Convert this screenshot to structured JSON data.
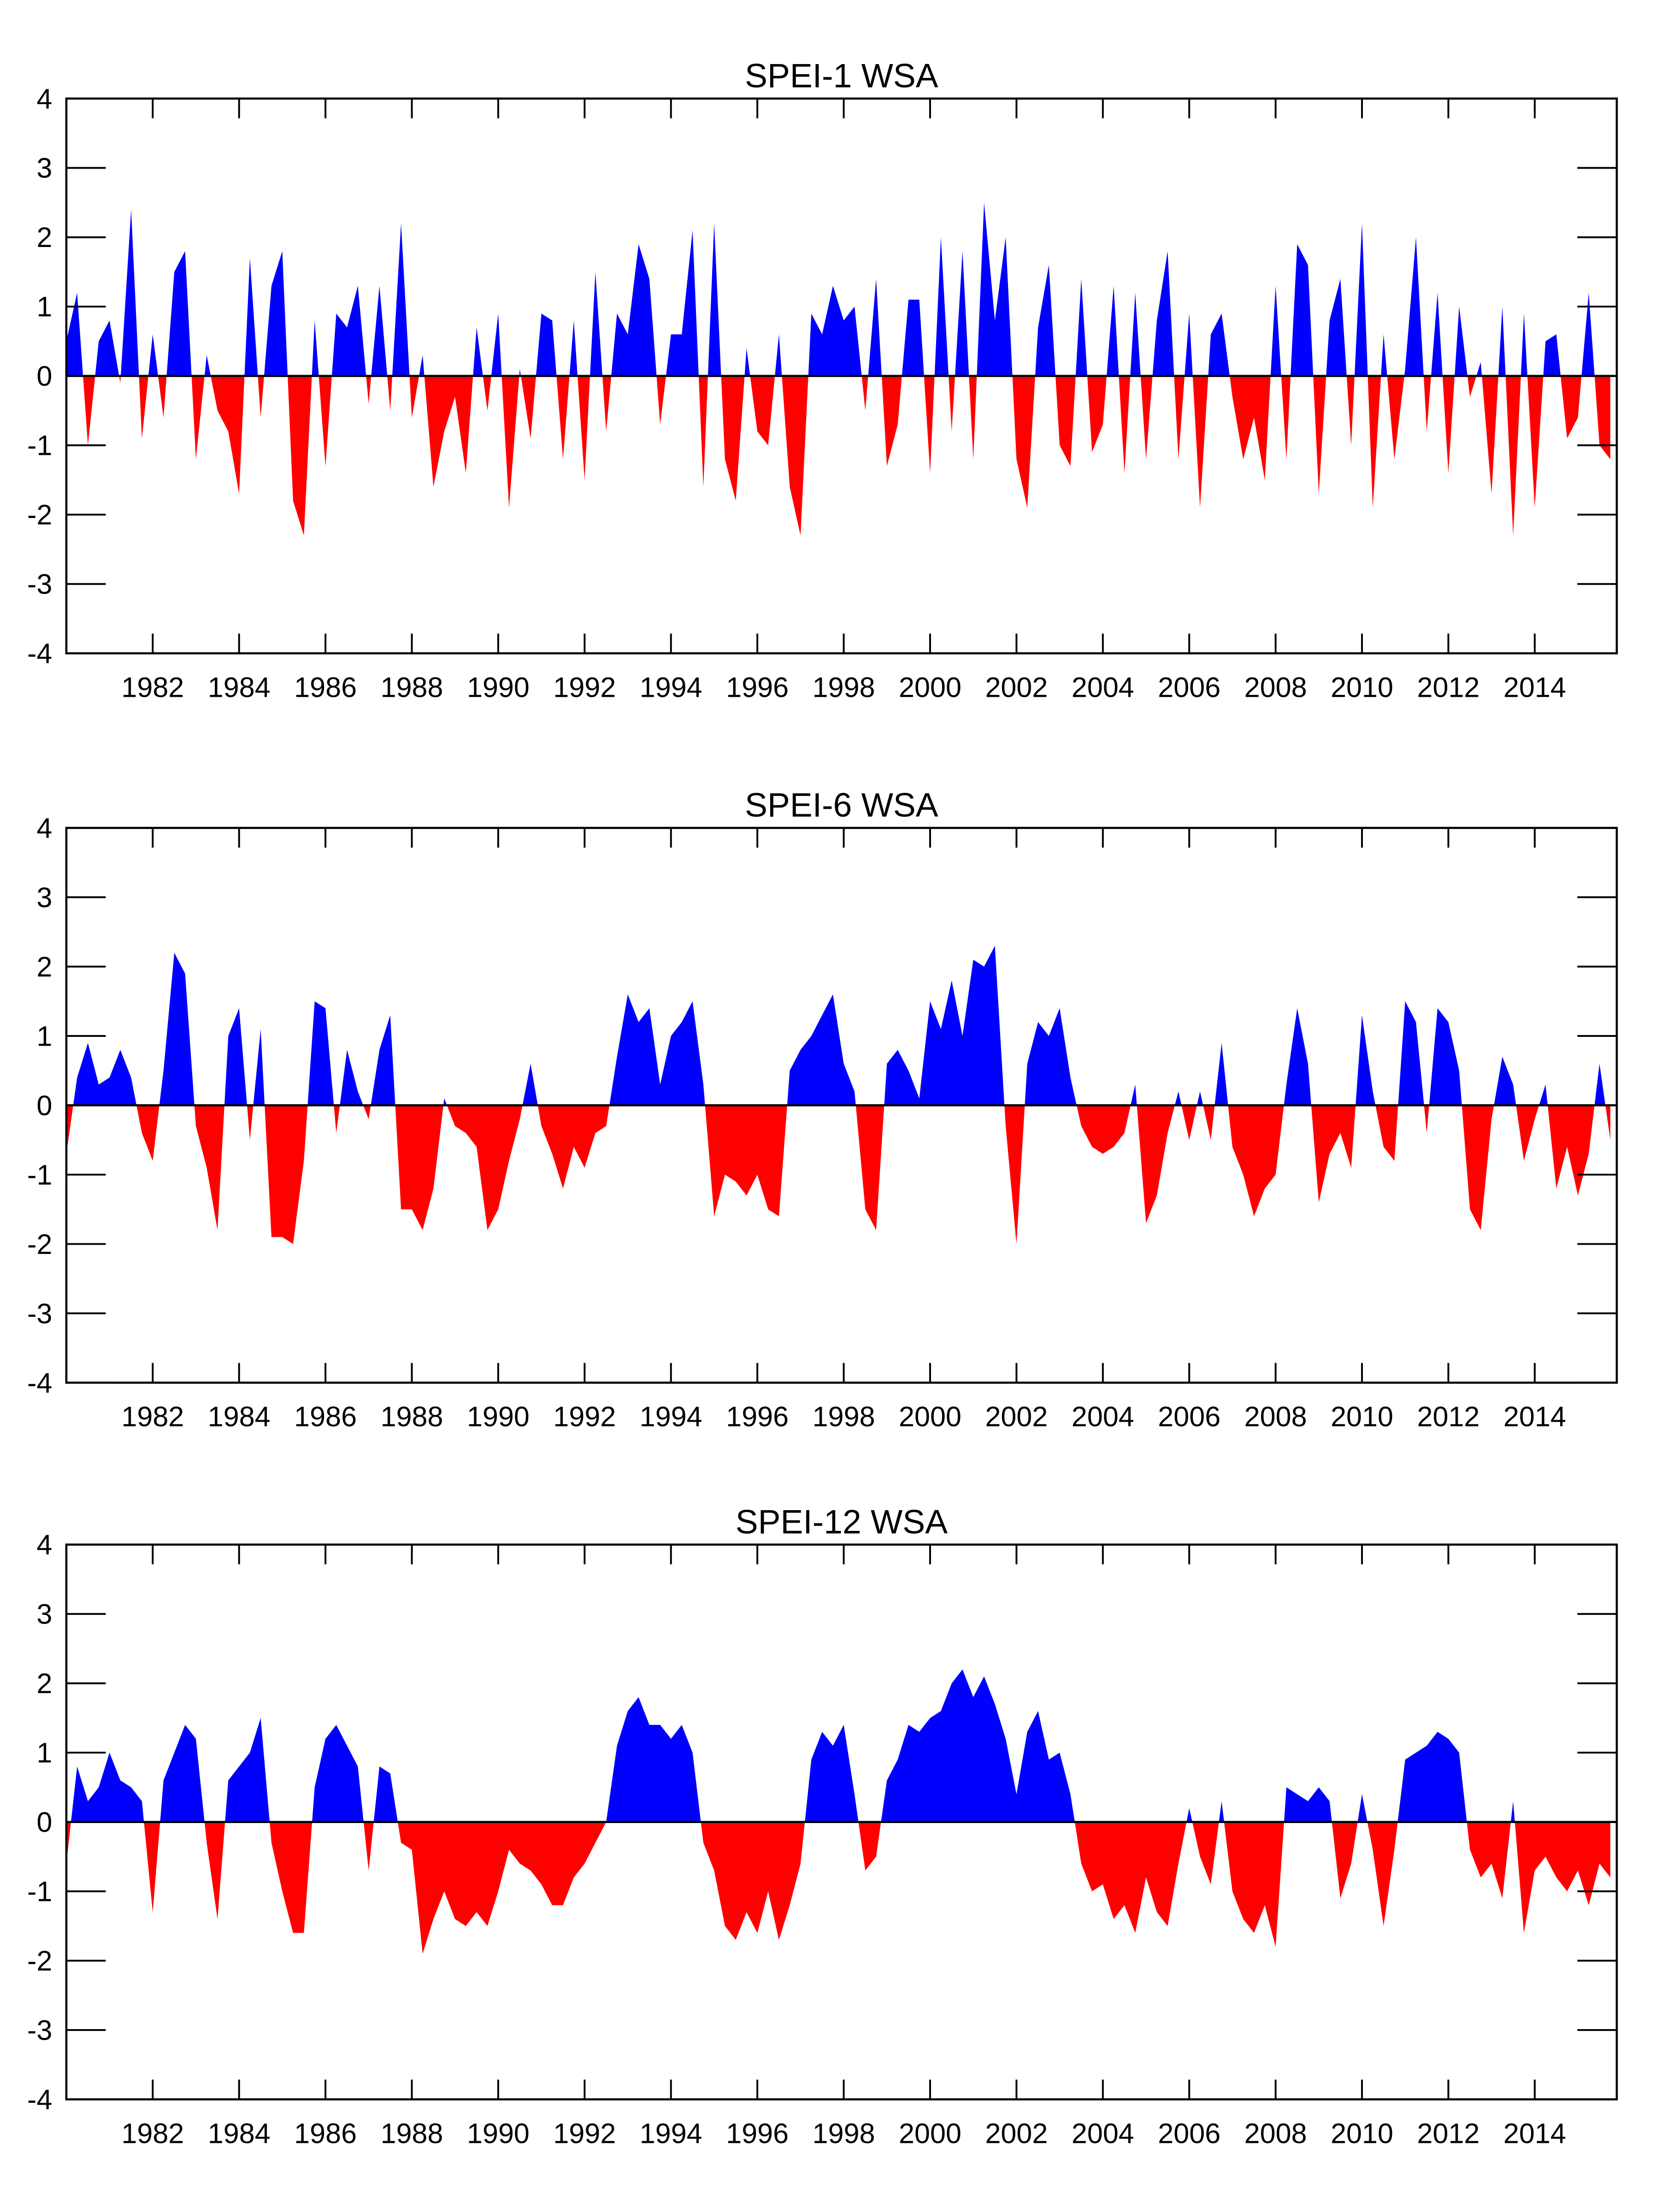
{
  "chart_data": [
    {
      "type": "area",
      "title": "SPEI-1 WSA",
      "x": [
        1980,
        1980.25,
        1980.5,
        1980.75,
        1981,
        1981.25,
        1981.5,
        1981.75,
        1982,
        1982.25,
        1982.5,
        1982.75,
        1983,
        1983.25,
        1983.5,
        1983.75,
        1984,
        1984.25,
        1984.5,
        1984.75,
        1985,
        1985.25,
        1985.5,
        1985.75,
        1986,
        1986.25,
        1986.5,
        1986.75,
        1987,
        1987.25,
        1987.5,
        1987.75,
        1988,
        1988.25,
        1988.5,
        1988.75,
        1989,
        1989.25,
        1989.5,
        1989.75,
        1990,
        1990.25,
        1990.5,
        1990.75,
        1991,
        1991.25,
        1991.5,
        1991.75,
        1992,
        1992.25,
        1992.5,
        1992.75,
        1993,
        1993.25,
        1993.5,
        1993.75,
        1994,
        1994.25,
        1994.5,
        1994.75,
        1995,
        1995.25,
        1995.5,
        1995.75,
        1996,
        1996.25,
        1996.5,
        1996.75,
        1997,
        1997.25,
        1997.5,
        1997.75,
        1998,
        1998.25,
        1998.5,
        1998.75,
        1999,
        1999.25,
        1999.5,
        1999.75,
        2000,
        2000.25,
        2000.5,
        2000.75,
        2001,
        2001.25,
        2001.5,
        2001.75,
        2002,
        2002.25,
        2002.5,
        2002.75,
        2003,
        2003.25,
        2003.5,
        2003.75,
        2004,
        2004.25,
        2004.5,
        2004.75,
        2005,
        2005.25,
        2005.5,
        2005.75,
        2006,
        2006.25,
        2006.5,
        2006.75,
        2007,
        2007.25,
        2007.5,
        2007.75,
        2008,
        2008.25,
        2008.5,
        2008.75,
        2009,
        2009.25,
        2009.5,
        2009.75,
        2010,
        2010.25,
        2010.5,
        2010.75,
        2011,
        2011.25,
        2011.5,
        2011.75,
        2012,
        2012.25,
        2012.5,
        2012.75,
        2013,
        2013.25,
        2013.5,
        2013.75,
        2014,
        2014.25,
        2014.5,
        2014.75,
        2015,
        2015.25,
        2015.5,
        2015.75
      ],
      "values": [
        0.5,
        1.2,
        -1.0,
        0.5,
        0.8,
        -0.1,
        2.4,
        -0.9,
        0.6,
        -0.6,
        1.5,
        1.8,
        -1.2,
        0.3,
        -0.5,
        -0.8,
        -1.7,
        1.7,
        -0.6,
        1.3,
        1.8,
        -1.8,
        -2.3,
        0.8,
        -1.3,
        0.9,
        0.7,
        1.3,
        -0.4,
        1.3,
        -0.5,
        2.2,
        -0.6,
        0.3,
        -1.6,
        -0.8,
        -0.3,
        -1.4,
        0.7,
        -0.5,
        0.9,
        -1.9,
        0.1,
        -0.9,
        0.9,
        0.8,
        -1.2,
        0.8,
        -1.5,
        1.5,
        -0.8,
        0.9,
        0.6,
        1.9,
        1.4,
        -0.7,
        0.6,
        0.6,
        2.1,
        -1.6,
        2.2,
        -1.2,
        -1.8,
        0.4,
        -0.8,
        -1.0,
        0.6,
        -1.6,
        -2.3,
        0.9,
        0.6,
        1.3,
        0.8,
        1.0,
        -0.5,
        1.4,
        -1.3,
        -0.7,
        1.1,
        1.1,
        -1.4,
        2.0,
        -0.8,
        1.8,
        -1.2,
        2.5,
        0.8,
        2.0,
        -1.2,
        -1.9,
        0.7,
        1.6,
        -1.0,
        -1.3,
        1.4,
        -1.1,
        -0.7,
        1.3,
        -1.4,
        1.2,
        -1.2,
        0.8,
        1.8,
        -1.2,
        0.9,
        -1.9,
        0.6,
        0.9,
        -0.3,
        -1.2,
        -0.6,
        -1.5,
        1.3,
        -1.2,
        1.9,
        1.6,
        -1.7,
        0.8,
        1.4,
        -1.0,
        2.2,
        -1.9,
        0.6,
        -1.2,
        0.1,
        2.0,
        -0.8,
        1.2,
        -1.4,
        1.0,
        -0.3,
        0.2,
        -1.7,
        1.0,
        -2.3,
        0.9,
        -1.9,
        0.5,
        0.6,
        -0.9,
        -0.6,
        1.2,
        -1.0,
        -1.2
      ],
      "xlim": [
        1980,
        2015.9
      ],
      "ylim": [
        -4,
        4
      ],
      "xticks": [
        1982,
        1984,
        1986,
        1988,
        1990,
        1992,
        1994,
        1996,
        1998,
        2000,
        2002,
        2004,
        2006,
        2008,
        2010,
        2012,
        2014
      ],
      "yticks": [
        -4,
        -3,
        -2,
        -1,
        0,
        1,
        2,
        3,
        4
      ],
      "color_positive": "#0000ff",
      "color_negative": "#ff0000"
    },
    {
      "type": "area",
      "title": "SPEI-6 WSA",
      "x": [
        1980,
        1980.25,
        1980.5,
        1980.75,
        1981,
        1981.25,
        1981.5,
        1981.75,
        1982,
        1982.25,
        1982.5,
        1982.75,
        1983,
        1983.25,
        1983.5,
        1983.75,
        1984,
        1984.25,
        1984.5,
        1984.75,
        1985,
        1985.25,
        1985.5,
        1985.75,
        1986,
        1986.25,
        1986.5,
        1986.75,
        1987,
        1987.25,
        1987.5,
        1987.75,
        1988,
        1988.25,
        1988.5,
        1988.75,
        1989,
        1989.25,
        1989.5,
        1989.75,
        1990,
        1990.25,
        1990.5,
        1990.75,
        1991,
        1991.25,
        1991.5,
        1991.75,
        1992,
        1992.25,
        1992.5,
        1992.75,
        1993,
        1993.25,
        1993.5,
        1993.75,
        1994,
        1994.25,
        1994.5,
        1994.75,
        1995,
        1995.25,
        1995.5,
        1995.75,
        1996,
        1996.25,
        1996.5,
        1996.75,
        1997,
        1997.25,
        1997.5,
        1997.75,
        1998,
        1998.25,
        1998.5,
        1998.75,
        1999,
        1999.25,
        1999.5,
        1999.75,
        2000,
        2000.25,
        2000.5,
        2000.75,
        2001,
        2001.25,
        2001.5,
        2001.75,
        2002,
        2002.25,
        2002.5,
        2002.75,
        2003,
        2003.25,
        2003.5,
        2003.75,
        2004,
        2004.25,
        2004.5,
        2004.75,
        2005,
        2005.25,
        2005.5,
        2005.75,
        2006,
        2006.25,
        2006.5,
        2006.75,
        2007,
        2007.25,
        2007.5,
        2007.75,
        2008,
        2008.25,
        2008.5,
        2008.75,
        2009,
        2009.25,
        2009.5,
        2009.75,
        2010,
        2010.25,
        2010.5,
        2010.75,
        2011,
        2011.25,
        2011.5,
        2011.75,
        2012,
        2012.25,
        2012.5,
        2012.75,
        2013,
        2013.25,
        2013.5,
        2013.75,
        2014,
        2014.25,
        2014.5,
        2014.75,
        2015,
        2015.25,
        2015.5,
        2015.75
      ],
      "values": [
        -0.7,
        0.4,
        0.9,
        0.3,
        0.4,
        0.8,
        0.4,
        -0.4,
        -0.8,
        0.5,
        2.2,
        1.9,
        -0.3,
        -0.9,
        -1.8,
        1.0,
        1.4,
        -0.5,
        1.1,
        -1.9,
        -1.9,
        -2.0,
        -0.8,
        1.5,
        1.4,
        -0.4,
        0.8,
        0.2,
        -0.2,
        0.8,
        1.3,
        -1.5,
        -1.5,
        -1.8,
        -1.2,
        0.1,
        -0.3,
        -0.4,
        -0.6,
        -1.8,
        -1.5,
        -0.8,
        -0.2,
        0.6,
        -0.3,
        -0.7,
        -1.2,
        -0.6,
        -0.9,
        -0.4,
        -0.3,
        0.7,
        1.6,
        1.2,
        1.4,
        0.3,
        1.0,
        1.2,
        1.5,
        0.3,
        -1.6,
        -1.0,
        -1.1,
        -1.3,
        -1.0,
        -1.5,
        -1.6,
        0.5,
        0.8,
        1.0,
        1.3,
        1.6,
        0.6,
        0.2,
        -1.5,
        -1.8,
        0.6,
        0.8,
        0.5,
        0.1,
        1.5,
        1.1,
        1.8,
        1.0,
        2.1,
        2.0,
        2.3,
        -0.3,
        -2.0,
        0.6,
        1.2,
        1.0,
        1.4,
        0.4,
        -0.3,
        -0.6,
        -0.7,
        -0.6,
        -0.4,
        0.3,
        -1.7,
        -1.3,
        -0.4,
        0.2,
        -0.5,
        0.2,
        -0.5,
        0.9,
        -0.6,
        -1.0,
        -1.6,
        -1.2,
        -1.0,
        0.3,
        1.4,
        0.6,
        -1.4,
        -0.7,
        -0.4,
        -0.9,
        1.3,
        0.2,
        -0.6,
        -0.8,
        1.5,
        1.2,
        -0.4,
        1.4,
        1.2,
        0.5,
        -1.5,
        -1.8,
        -0.2,
        0.7,
        0.3,
        -0.8,
        -0.2,
        0.3,
        -1.2,
        -0.6,
        -1.3,
        -0.7,
        0.6,
        -0.5
      ],
      "xlim": [
        1980,
        2015.9
      ],
      "ylim": [
        -4,
        4
      ],
      "xticks": [
        1982,
        1984,
        1986,
        1988,
        1990,
        1992,
        1994,
        1996,
        1998,
        2000,
        2002,
        2004,
        2006,
        2008,
        2010,
        2012,
        2014
      ],
      "yticks": [
        -4,
        -3,
        -2,
        -1,
        0,
        1,
        2,
        3,
        4
      ],
      "color_positive": "#0000ff",
      "color_negative": "#ff0000"
    },
    {
      "type": "area",
      "title": "SPEI-12 WSA",
      "x": [
        1980,
        1980.25,
        1980.5,
        1980.75,
        1981,
        1981.25,
        1981.5,
        1981.75,
        1982,
        1982.25,
        1982.5,
        1982.75,
        1983,
        1983.25,
        1983.5,
        1983.75,
        1984,
        1984.25,
        1984.5,
        1984.75,
        1985,
        1985.25,
        1985.5,
        1985.75,
        1986,
        1986.25,
        1986.5,
        1986.75,
        1987,
        1987.25,
        1987.5,
        1987.75,
        1988,
        1988.25,
        1988.5,
        1988.75,
        1989,
        1989.25,
        1989.5,
        1989.75,
        1990,
        1990.25,
        1990.5,
        1990.75,
        1991,
        1991.25,
        1991.5,
        1991.75,
        1992,
        1992.25,
        1992.5,
        1992.75,
        1993,
        1993.25,
        1993.5,
        1993.75,
        1994,
        1994.25,
        1994.5,
        1994.75,
        1995,
        1995.25,
        1995.5,
        1995.75,
        1996,
        1996.25,
        1996.5,
        1996.75,
        1997,
        1997.25,
        1997.5,
        1997.75,
        1998,
        1998.25,
        1998.5,
        1998.75,
        1999,
        1999.25,
        1999.5,
        1999.75,
        2000,
        2000.25,
        2000.5,
        2000.75,
        2001,
        2001.25,
        2001.5,
        2001.75,
        2002,
        2002.25,
        2002.5,
        2002.75,
        2003,
        2003.25,
        2003.5,
        2003.75,
        2004,
        2004.25,
        2004.5,
        2004.75,
        2005,
        2005.25,
        2005.5,
        2005.75,
        2006,
        2006.25,
        2006.5,
        2006.75,
        2007,
        2007.25,
        2007.5,
        2007.75,
        2008,
        2008.25,
        2008.5,
        2008.75,
        2009,
        2009.25,
        2009.5,
        2009.75,
        2010,
        2010.25,
        2010.5,
        2010.75,
        2011,
        2011.25,
        2011.5,
        2011.75,
        2012,
        2012.25,
        2012.5,
        2012.75,
        2013,
        2013.25,
        2013.5,
        2013.75,
        2014,
        2014.25,
        2014.5,
        2014.75,
        2015,
        2015.25,
        2015.5,
        2015.75
      ],
      "values": [
        -0.6,
        0.8,
        0.3,
        0.5,
        1.0,
        0.6,
        0.5,
        0.3,
        -1.3,
        0.6,
        1.0,
        1.4,
        1.2,
        -0.3,
        -1.4,
        0.6,
        0.8,
        1.0,
        1.5,
        -0.3,
        -1.0,
        -1.6,
        -1.6,
        0.5,
        1.2,
        1.4,
        1.1,
        0.8,
        -0.7,
        0.8,
        0.7,
        -0.3,
        -0.4,
        -1.9,
        -1.4,
        -1.0,
        -1.4,
        -1.5,
        -1.3,
        -1.5,
        -1.0,
        -0.4,
        -0.6,
        -0.7,
        -0.9,
        -1.2,
        -1.2,
        -0.8,
        -0.6,
        -0.3,
        0.0,
        1.1,
        1.6,
        1.8,
        1.4,
        1.4,
        1.2,
        1.4,
        1.0,
        -0.3,
        -0.7,
        -1.5,
        -1.7,
        -1.3,
        -1.6,
        -1.0,
        -1.7,
        -1.2,
        -0.6,
        0.9,
        1.3,
        1.1,
        1.4,
        0.4,
        -0.7,
        -0.5,
        0.6,
        0.9,
        1.4,
        1.3,
        1.5,
        1.6,
        2.0,
        2.2,
        1.8,
        2.1,
        1.7,
        1.2,
        0.4,
        1.3,
        1.6,
        0.9,
        1.0,
        0.4,
        -0.6,
        -1.0,
        -0.9,
        -1.4,
        -1.2,
        -1.6,
        -0.8,
        -1.3,
        -1.5,
        -0.6,
        0.2,
        -0.5,
        -0.9,
        0.3,
        -1.0,
        -1.4,
        -1.6,
        -1.2,
        -1.8,
        0.5,
        0.4,
        0.3,
        0.5,
        0.3,
        -1.1,
        -0.6,
        0.4,
        -0.4,
        -1.5,
        -0.4,
        0.9,
        1.0,
        1.1,
        1.3,
        1.2,
        1.0,
        -0.4,
        -0.8,
        -0.6,
        -1.1,
        0.3,
        -1.6,
        -0.7,
        -0.5,
        -0.8,
        -1.0,
        -0.7,
        -1.2,
        -0.6,
        -0.8
      ],
      "xlim": [
        1980,
        2015.9
      ],
      "ylim": [
        -4,
        4
      ],
      "xticks": [
        1982,
        1984,
        1986,
        1988,
        1990,
        1992,
        1994,
        1996,
        1998,
        2000,
        2002,
        2004,
        2006,
        2008,
        2010,
        2012,
        2014
      ],
      "yticks": [
        -4,
        -3,
        -2,
        -1,
        0,
        1,
        2,
        3,
        4
      ],
      "color_positive": "#0000ff",
      "color_negative": "#ff0000"
    }
  ]
}
